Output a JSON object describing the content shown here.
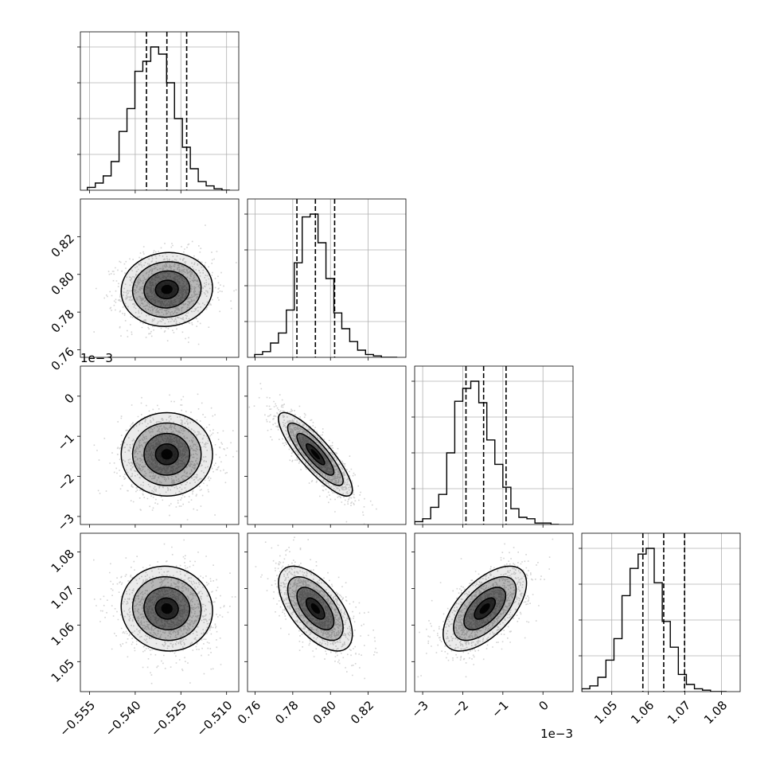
{
  "chart_data": {
    "type": "corner",
    "parameters": [
      {
        "range": [
          -0.558,
          -0.506
        ],
        "ticks": [
          -0.555,
          -0.54,
          -0.525,
          -0.51
        ],
        "tick_labels": [
          "−0.555",
          "−0.540",
          "−0.525",
          "−0.510"
        ],
        "quantiles": [
          -0.5363,
          -0.5296,
          -0.5231
        ],
        "offset_text": "",
        "histogram": {
          "bin_start": -0.5557,
          "bin_width": 0.0026,
          "counts": [
            0.02,
            0.05,
            0.1,
            0.2,
            0.41,
            0.57,
            0.83,
            0.9,
            1.0,
            0.95,
            0.75,
            0.5,
            0.3,
            0.15,
            0.06,
            0.03,
            0.01,
            0.0
          ]
        }
      },
      {
        "range": [
          0.756,
          0.84
        ],
        "ticks": [
          0.76,
          0.78,
          0.8,
          0.82
        ],
        "tick_labels": [
          "0.76",
          "0.78",
          "0.80",
          "0.82"
        ],
        "quantiles": [
          0.7822,
          0.792,
          0.8022
        ],
        "offset_text": "",
        "histogram": {
          "bin_start": 0.7598,
          "bin_width": 0.0042,
          "counts": [
            0.02,
            0.04,
            0.1,
            0.17,
            0.33,
            0.66,
            0.98,
            1.0,
            0.8,
            0.55,
            0.31,
            0.2,
            0.11,
            0.05,
            0.02,
            0.01,
            0.0,
            0.0
          ]
        }
      },
      {
        "range": [
          -3.2,
          0.75
        ],
        "ticks": [
          -3,
          -2,
          -1,
          0
        ],
        "tick_labels": [
          "−3",
          "−2",
          "−1",
          "0"
        ],
        "quantiles": [
          -1.92,
          -1.48,
          -0.92
        ],
        "offset_text": "1e−3",
        "histogram": {
          "bin_start": -3.2,
          "bin_width": 0.2,
          "counts": [
            0.02,
            0.04,
            0.12,
            0.21,
            0.5,
            0.86,
            0.95,
            1.0,
            0.85,
            0.59,
            0.42,
            0.26,
            0.11,
            0.05,
            0.04,
            0.01,
            0.01,
            0.0
          ]
        }
      },
      {
        "range": [
          1.0418,
          1.0851
        ],
        "ticks": [
          1.05,
          1.06,
          1.07,
          1.08
        ],
        "tick_labels": [
          "1.05",
          "1.06",
          "1.07",
          "1.08"
        ],
        "quantiles": [
          1.0585,
          1.0642,
          1.0699
        ],
        "offset_text": "",
        "histogram": {
          "bin_start": 1.0418,
          "bin_width": 0.0022,
          "counts": [
            0.02,
            0.04,
            0.1,
            0.22,
            0.37,
            0.67,
            0.86,
            0.96,
            1.0,
            0.76,
            0.49,
            0.31,
            0.12,
            0.05,
            0.02,
            0.01,
            0.0,
            0.0
          ]
        }
      }
    ],
    "pairs": [
      {
        "row": 1,
        "col": 0,
        "mean": [
          -0.5296,
          0.792
        ],
        "std": [
          0.0075,
          0.0098
        ],
        "corr": 0.05
      },
      {
        "row": 2,
        "col": 0,
        "mean": [
          -0.5296,
          -1.45
        ],
        "std": [
          0.0075,
          0.52
        ],
        "corr": 0.0
      },
      {
        "row": 2,
        "col": 1,
        "mean": [
          0.792,
          -1.45
        ],
        "std": [
          0.0098,
          0.52
        ],
        "corr": -0.85
      },
      {
        "row": 3,
        "col": 0,
        "mean": [
          -0.5296,
          1.0645
        ],
        "std": [
          0.0075,
          0.0058
        ],
        "corr": -0.05
      },
      {
        "row": 3,
        "col": 1,
        "mean": [
          0.792,
          1.0645
        ],
        "std": [
          0.0098,
          0.0058
        ],
        "corr": -0.6
      },
      {
        "row": 3,
        "col": 2,
        "mean": [
          -1.45,
          1.0645
        ],
        "std": [
          0.52,
          0.0058
        ],
        "corr": 0.6
      }
    ],
    "contour_levels_sigma": [
      0.5,
      1.0,
      1.5,
      2.0
    ],
    "grid": true,
    "colors": {
      "line": "#000000",
      "grid": "#b0b0b0",
      "points": "#808080",
      "density": "#000000"
    }
  }
}
